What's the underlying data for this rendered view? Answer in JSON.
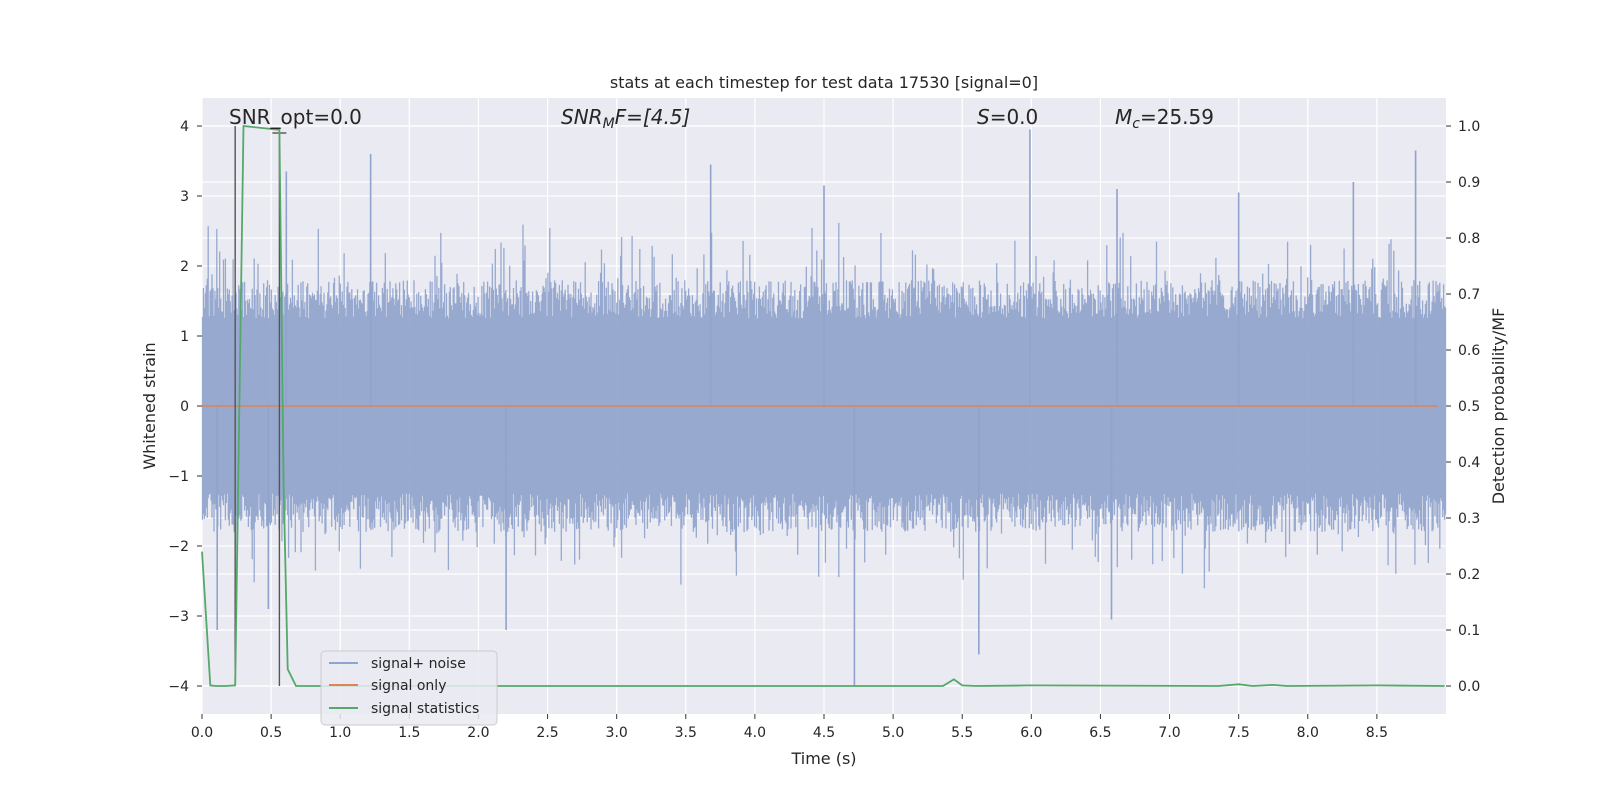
{
  "chart_data": {
    "type": "line",
    "title": "stats at each timestep for test data 17530 [signal=0]",
    "xlabel": "Time (s)",
    "ylabel": "Whitened strain",
    "ylabel_right": "Detection probability/MF",
    "xlim": [
      0,
      9.0
    ],
    "ylim": [
      -4.4,
      4.4
    ],
    "ylim_right": [
      -0.05,
      1.05
    ],
    "x_ticks": [
      "0.0",
      "0.5",
      "1.0",
      "1.5",
      "2.0",
      "2.5",
      "3.0",
      "3.5",
      "4.0",
      "4.5",
      "5.0",
      "5.5",
      "6.0",
      "6.5",
      "7.0",
      "7.5",
      "8.0",
      "8.5"
    ],
    "y_ticks": [
      "4",
      "3",
      "2",
      "1",
      "0",
      "−1",
      "−2",
      "−3",
      "−4"
    ],
    "y_ticks_right": [
      "1.0",
      "0.9",
      "0.8",
      "0.7",
      "0.6",
      "0.5",
      "0.4",
      "0.3",
      "0.2",
      "0.1",
      "0.0"
    ],
    "grid": true,
    "annotations": {
      "snr_opt": "SNR_opt=0.0",
      "snr_mf_base": "SNR",
      "snr_mf_sub": "M",
      "snr_mf_rest": "F=[4.5]",
      "s_base": "S",
      "s_rest": "=0.0",
      "mc_base": "M",
      "mc_sub": "c",
      "mc_rest": "=25.59"
    },
    "series": [
      {
        "name": "signal+ noise",
        "color": "#8fa3cc",
        "kind": "noise",
        "spikes": [
          {
            "x": 0.11,
            "y": -3.2
          },
          {
            "x": 0.48,
            "y": -2.9
          },
          {
            "x": 0.61,
            "y": 3.35
          },
          {
            "x": 1.22,
            "y": 3.6
          },
          {
            "x": 2.2,
            "y": -3.2
          },
          {
            "x": 3.68,
            "y": 3.45
          },
          {
            "x": 4.5,
            "y": 3.15
          },
          {
            "x": 4.72,
            "y": -4.0
          },
          {
            "x": 5.62,
            "y": -3.55
          },
          {
            "x": 5.99,
            "y": 3.95
          },
          {
            "x": 6.58,
            "y": -3.05
          },
          {
            "x": 6.62,
            "y": 3.1
          },
          {
            "x": 7.5,
            "y": 3.05
          },
          {
            "x": 8.33,
            "y": 3.2
          },
          {
            "x": 8.78,
            "y": 3.65
          }
        ]
      },
      {
        "name": "signal only",
        "color": "#dd8452",
        "values_const": 0.0
      },
      {
        "name": "signal statistics",
        "color": "#55a868",
        "axis": "right",
        "x": [
          0.0,
          0.06,
          0.1,
          0.17,
          0.24,
          0.3,
          0.56,
          0.59,
          0.62,
          0.68,
          5.36,
          5.44,
          5.5,
          5.6,
          6.0,
          7.35,
          7.5,
          7.6,
          7.75,
          7.85,
          8.5,
          8.99
        ],
        "values": [
          0.24,
          0.001,
          0.0,
          0.0,
          0.001,
          1.0,
          0.993,
          0.36,
          0.03,
          0.0,
          0.0,
          0.012,
          0.001,
          0.0,
          0.001,
          0.0,
          0.003,
          0.0,
          0.002,
          0.0,
          0.001,
          0.0
        ]
      }
    ],
    "markers": [
      {
        "kind": "vline",
        "x": 0.24,
        "y0": -4.0,
        "y1": 4.0,
        "color": "#555555"
      },
      {
        "kind": "vline",
        "x": 0.56,
        "y0": -4.0,
        "y1": 3.9,
        "color": "#555555"
      }
    ],
    "legend": {
      "position": "lower-left",
      "entries": [
        "signal+ noise",
        "signal only",
        "signal statistics"
      ]
    }
  }
}
